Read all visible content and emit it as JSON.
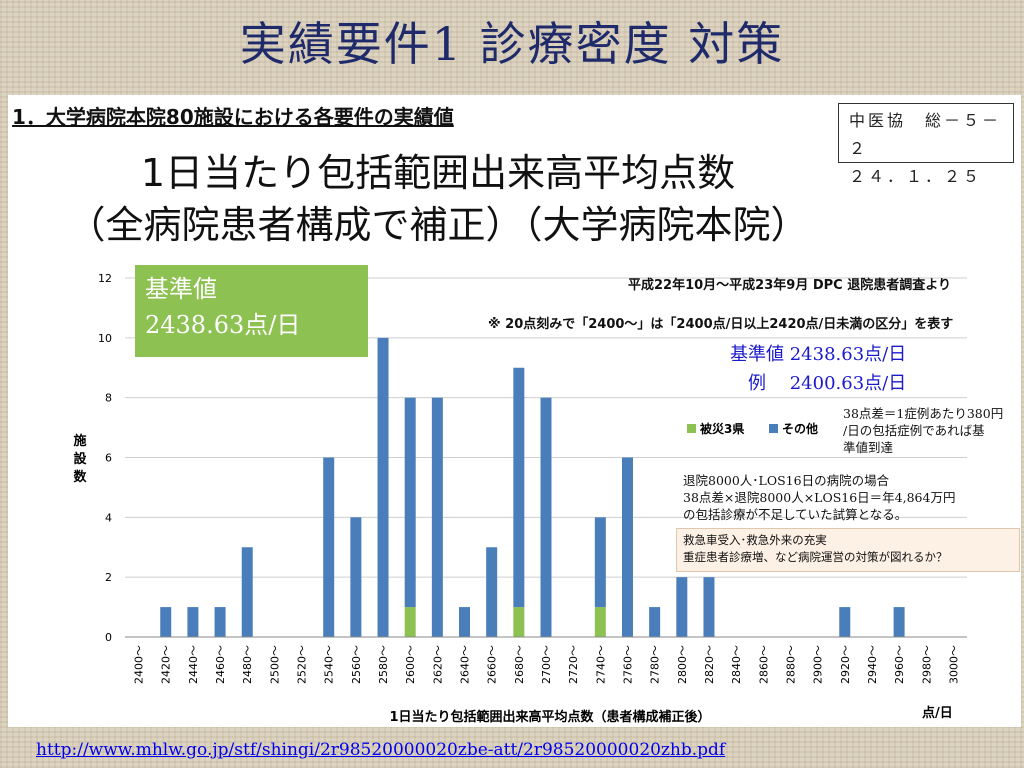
{
  "slide_title": "実績要件1 診療密度 対策",
  "heading": "1．大学病院本院80施設における各要件の実績値",
  "source_box": {
    "line1": "中医協　総－５－２",
    "line2": "２４．１．２５"
  },
  "chart_title": {
    "line1": "1日当たり包括範囲出来高平均点数",
    "line2": "（全病院患者構成で補正）（大学病院本院）"
  },
  "green_callout": {
    "line1": "基準値",
    "line2": "2438.63点/日"
  },
  "period_note": "平成22年10月～平成23年9月 DPC 退院患者調査より",
  "bin_note": "※ 20点刻みで「2400～」は「2400点/日以上2420点/日未満の区分」を表す",
  "blue_notes": {
    "line1": "基準値 2438.63点/日",
    "line2": "　例　 2400.63点/日"
  },
  "diff_note": [
    "38点差＝1症例あたり380円",
    "/日の包括症例であれば基",
    "準値到達"
  ],
  "case_note": [
    "退院8000人･LOS16日の病院の場合",
    "38点差×退院8000人×LOS16日＝年4,864万円",
    "の包括診療が不足していた試算となる。"
  ],
  "countermeasure_note": [
    "救急車受入･救急外来の充実",
    "重症患者診療増、など病院運営の対策が図れるか？"
  ],
  "url": "http://www.mhlw.go.jp/stf/shingi/2r98520000020zbe-att/2r98520000020zhb.pdf",
  "chart_data": {
    "type": "bar",
    "stacked": true,
    "categories": [
      "2400～",
      "2420～",
      "2440～",
      "2460～",
      "2480～",
      "2500～",
      "2520～",
      "2540～",
      "2560～",
      "2580～",
      "2600～",
      "2620～",
      "2640～",
      "2660～",
      "2680～",
      "2700～",
      "2720～",
      "2740～",
      "2760～",
      "2780～",
      "2800～",
      "2820～",
      "2840～",
      "2860～",
      "2880～",
      "2900～",
      "2920～",
      "2940～",
      "2960～",
      "2980～",
      "3000～"
    ],
    "series": [
      {
        "name": "被災3県",
        "color": "#8dc152",
        "values": [
          0,
          0,
          0,
          0,
          0,
          0,
          0,
          0,
          0,
          0,
          1,
          0,
          0,
          0,
          1,
          0,
          0,
          1,
          0,
          0,
          0,
          0,
          0,
          0,
          0,
          0,
          0,
          0,
          0,
          0,
          0
        ]
      },
      {
        "name": "その他",
        "color": "#4a7ebb",
        "values": [
          0,
          1,
          1,
          1,
          3,
          0,
          0,
          6,
          4,
          10,
          7,
          8,
          1,
          3,
          8,
          8,
          0,
          3,
          6,
          1,
          2,
          2,
          0,
          0,
          0,
          0,
          1,
          0,
          1,
          0,
          0
        ]
      }
    ],
    "ylabel": "施設数",
    "xlabel": "1日当たり包括範囲出来高平均点数（患者構成補正後）",
    "x_unit": "点/日",
    "ylim": [
      0,
      12
    ],
    "yticks": [
      "0",
      "2",
      "4",
      "6",
      "8",
      "10",
      "12"
    ],
    "grid": true,
    "legend_position": "right"
  }
}
